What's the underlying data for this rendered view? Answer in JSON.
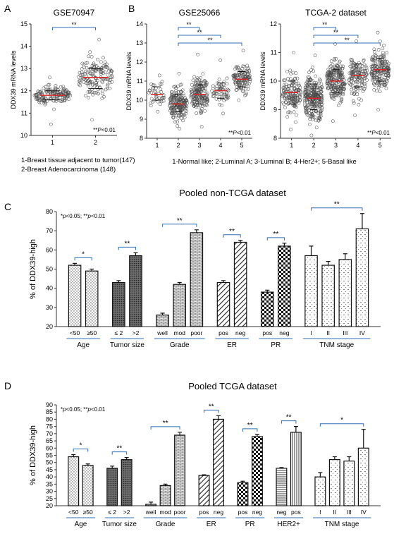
{
  "panel_labels": {
    "A": "A",
    "B": "B",
    "C": "C",
    "D": "D"
  },
  "colors": {
    "median": "#d62728",
    "bracket": "#2e6fb5",
    "point": "#4a4a4a",
    "axis": "#333333"
  },
  "chart_data": [
    {
      "type": "scatter",
      "title": "GSE70947",
      "ylabel": "DDX39 mRNA levels",
      "ylim": [
        10,
        15
      ],
      "yticks": [
        10,
        11,
        12,
        13,
        14,
        15
      ],
      "categories": [
        "1",
        "2"
      ],
      "groups": [
        {
          "n": 147,
          "median": 11.8,
          "q1": 11.6,
          "q3": 12.0,
          "min": 10.5,
          "max": 12.6,
          "spread": 0.45
        },
        {
          "n": 148,
          "median": 12.6,
          "q1": 12.1,
          "q3": 13.0,
          "min": 10.7,
          "max": 14.3,
          "spread": 0.45
        }
      ],
      "brackets": [
        {
          "from": 0,
          "to": 1,
          "label": "**"
        }
      ],
      "pnote": "**P<0.01",
      "legend_lines": [
        "1-Breast tissue adjacent to tumor(147)",
        "2-Breast  Adenocarcinoma (148)"
      ]
    },
    {
      "type": "scatter",
      "title": "GSE25066",
      "ylabel": "DDX39 mRNA levels",
      "ylim": [
        8,
        14
      ],
      "yticks": [
        8,
        9,
        10,
        11,
        12,
        13,
        14
      ],
      "categories": [
        "1",
        "2",
        "3",
        "4",
        "5"
      ],
      "groups": [
        {
          "n": 40,
          "median": 10.3,
          "q1": 10.0,
          "q3": 10.7,
          "min": 9.4,
          "max": 11.3,
          "spread": 0.3
        },
        {
          "n": 180,
          "median": 9.8,
          "q1": 9.4,
          "q3": 10.3,
          "min": 8.5,
          "max": 11.4,
          "spread": 0.34
        },
        {
          "n": 160,
          "median": 10.3,
          "q1": 9.8,
          "q3": 10.8,
          "min": 8.6,
          "max": 12.4,
          "spread": 0.34
        },
        {
          "n": 60,
          "median": 10.5,
          "q1": 10.1,
          "q3": 10.9,
          "min": 9.3,
          "max": 12.1,
          "spread": 0.3
        },
        {
          "n": 120,
          "median": 11.1,
          "q1": 10.7,
          "q3": 11.5,
          "min": 10.0,
          "max": 12.6,
          "spread": 0.32
        }
      ],
      "brackets": [
        {
          "from": 1,
          "to": 2,
          "label": "**"
        },
        {
          "from": 1,
          "to": 3,
          "label": "**"
        },
        {
          "from": 1,
          "to": 4,
          "label": "**"
        }
      ],
      "pnote": "**P<0.01",
      "legend_lines": [
        "1-Normal like; 2-Luminal A; 3-Luminal B; 4-Her2+; 5-Basal like"
      ]
    },
    {
      "type": "scatter",
      "title": "TCGA-2 dataset",
      "ylabel": "DDX39 mRNA levels",
      "ylim": [
        8,
        12
      ],
      "yticks": [
        8,
        9,
        10,
        11,
        12
      ],
      "categories": [
        "1",
        "2",
        "3",
        "4",
        "5"
      ],
      "groups": [
        {
          "n": 140,
          "median": 9.6,
          "q1": 9.2,
          "q3": 10.0,
          "min": 8.3,
          "max": 11.0,
          "spread": 0.34
        },
        {
          "n": 260,
          "median": 9.4,
          "q1": 9.0,
          "q3": 9.9,
          "min": 8.1,
          "max": 10.9,
          "spread": 0.36
        },
        {
          "n": 210,
          "median": 10.0,
          "q1": 9.6,
          "q3": 10.4,
          "min": 8.6,
          "max": 11.3,
          "spread": 0.36
        },
        {
          "n": 130,
          "median": 10.2,
          "q1": 9.8,
          "q3": 10.6,
          "min": 8.8,
          "max": 11.4,
          "spread": 0.33
        },
        {
          "n": 180,
          "median": 10.4,
          "q1": 10.0,
          "q3": 10.8,
          "min": 9.0,
          "max": 11.7,
          "spread": 0.34
        }
      ],
      "brackets": [
        {
          "from": 1,
          "to": 2,
          "label": "**"
        },
        {
          "from": 1,
          "to": 3,
          "label": "**"
        },
        {
          "from": 1,
          "to": 4,
          "label": "**"
        }
      ],
      "pnote": "**P<0.01"
    },
    {
      "type": "bar",
      "title": "Pooled non-TCGA dataset",
      "ylabel": "% of DDX39-high",
      "ylim": [
        20,
        80
      ],
      "yticks": [
        20,
        30,
        40,
        50,
        60,
        70,
        80
      ],
      "sig_note": "*p<0.05; **p<0.01",
      "bars": [
        {
          "label": "<50",
          "value": 52,
          "err": 1.0,
          "pattern": "dots",
          "group": 0
        },
        {
          "label": "≥50",
          "value": 49,
          "err": 1.0,
          "pattern": "dots",
          "group": 0
        },
        {
          "label": "≤ 2",
          "value": 43,
          "err": 1.0,
          "pattern": "dark",
          "group": 1
        },
        {
          "label": ">2",
          "value": 57,
          "err": 1.5,
          "pattern": "dark",
          "group": 1
        },
        {
          "label": "well",
          "value": 26,
          "err": 1.0,
          "pattern": "brick",
          "group": 2
        },
        {
          "label": "mod",
          "value": 42,
          "err": 1.0,
          "pattern": "brick",
          "group": 2
        },
        {
          "label": "poor",
          "value": 69,
          "err": 1.5,
          "pattern": "brick",
          "group": 2
        },
        {
          "label": "pos",
          "value": 43,
          "err": 1.0,
          "pattern": "diag",
          "group": 3
        },
        {
          "label": "neg",
          "value": 64,
          "err": 1.0,
          "pattern": "diag",
          "group": 3
        },
        {
          "label": "pos",
          "value": 38,
          "err": 1.0,
          "pattern": "check",
          "group": 4
        },
        {
          "label": "neg",
          "value": 62,
          "err": 1.5,
          "pattern": "check",
          "group": 4
        },
        {
          "label": "I",
          "value": 57,
          "err": 5.0,
          "pattern": "hearts",
          "group": 5
        },
        {
          "label": "II",
          "value": 52,
          "err": 2.0,
          "pattern": "hearts",
          "group": 5
        },
        {
          "label": "III",
          "value": 55,
          "err": 3.0,
          "pattern": "hearts",
          "group": 5
        },
        {
          "label": "IV",
          "value": 71,
          "err": 8.0,
          "pattern": "hearts",
          "group": 5
        }
      ],
      "groups": [
        "Age",
        "Tumor size",
        "Grade",
        "ER",
        "PR",
        "TNM stage"
      ],
      "brackets": [
        {
          "from": 0,
          "to": 1,
          "label": "*"
        },
        {
          "from": 2,
          "to": 3,
          "label": "**"
        },
        {
          "from": 4,
          "to": 6,
          "label": "**"
        },
        {
          "from": 7,
          "to": 8,
          "label": "**"
        },
        {
          "from": 9,
          "to": 10,
          "label": "**"
        },
        {
          "from": 11,
          "to": 14,
          "label": "**"
        }
      ]
    },
    {
      "type": "bar",
      "title": "Pooled TCGA dataset",
      "ylabel": "% of DDX39-high",
      "ylim": [
        20,
        90
      ],
      "yticks": [
        20,
        25,
        30,
        35,
        40,
        45,
        50,
        55,
        60,
        65,
        70,
        75,
        80,
        85,
        90
      ],
      "sig_note": "*p<0.05; **p<0.01",
      "bars": [
        {
          "label": "<50",
          "value": 54,
          "err": 1.5,
          "pattern": "dots",
          "group": 0
        },
        {
          "label": "≥50",
          "value": 48,
          "err": 1.0,
          "pattern": "dots",
          "group": 0
        },
        {
          "label": "≤ 2",
          "value": 46,
          "err": 1.5,
          "pattern": "dark",
          "group": 1
        },
        {
          "label": ">2",
          "value": 52,
          "err": 1.5,
          "pattern": "dark",
          "group": 1
        },
        {
          "label": "well",
          "value": 21,
          "err": 1.5,
          "pattern": "brick",
          "group": 2
        },
        {
          "label": "mod",
          "value": 34,
          "err": 1.0,
          "pattern": "brick",
          "group": 2
        },
        {
          "label": "poor",
          "value": 69,
          "err": 2.0,
          "pattern": "brick",
          "group": 2
        },
        {
          "label": "pos",
          "value": 41,
          "err": 0.5,
          "pattern": "diag",
          "group": 3
        },
        {
          "label": "neg",
          "value": 80,
          "err": 2.5,
          "pattern": "diag",
          "group": 3
        },
        {
          "label": "pos",
          "value": 36,
          "err": 1.0,
          "pattern": "check",
          "group": 4
        },
        {
          "label": "neg",
          "value": 68,
          "err": 1.5,
          "pattern": "check",
          "group": 4
        },
        {
          "label": "neg",
          "value": 46,
          "err": 0.5,
          "pattern": "hlines",
          "group": 5
        },
        {
          "label": "pos",
          "value": 71,
          "err": 4.0,
          "pattern": "vlines",
          "group": 5
        },
        {
          "label": "I",
          "value": 40,
          "err": 3.0,
          "pattern": "hearts",
          "group": 6
        },
        {
          "label": "II",
          "value": 52,
          "err": 2.0,
          "pattern": "hearts",
          "group": 6
        },
        {
          "label": "III",
          "value": 51,
          "err": 3.0,
          "pattern": "hearts",
          "group": 6
        },
        {
          "label": "IV",
          "value": 60,
          "err": 13.0,
          "pattern": "hearts",
          "group": 6
        }
      ],
      "groups": [
        "Age",
        "Tumor size",
        "Grade",
        "ER",
        "PR",
        "HER2+",
        "TNM stage"
      ],
      "brackets": [
        {
          "from": 0,
          "to": 1,
          "label": "*"
        },
        {
          "from": 2,
          "to": 3,
          "label": "**"
        },
        {
          "from": 4,
          "to": 6,
          "label": "**"
        },
        {
          "from": 7,
          "to": 8,
          "label": "**"
        },
        {
          "from": 9,
          "to": 10,
          "label": "**"
        },
        {
          "from": 11,
          "to": 12,
          "label": "**"
        },
        {
          "from": 13,
          "to": 16,
          "label": "*"
        }
      ]
    }
  ]
}
